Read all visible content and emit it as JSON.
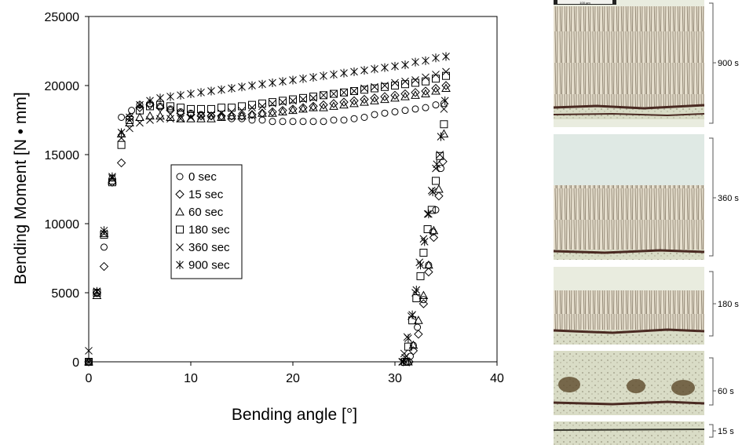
{
  "chart_data": {
    "type": "scatter",
    "xlabel": "Bending angle [°]",
    "ylabel": "Bending Moment  [N • mm]",
    "xlim": [
      0,
      40
    ],
    "ylim": [
      0,
      25000
    ],
    "xticks": [
      0,
      10,
      20,
      30,
      40
    ],
    "yticks": [
      0,
      5000,
      10000,
      15000,
      20000,
      25000
    ],
    "grid": false,
    "legend_position": "center-left",
    "series": [
      {
        "name": "0 sec",
        "marker": "circle",
        "points": [
          [
            0,
            0
          ],
          [
            0.8,
            5000
          ],
          [
            1.5,
            8300
          ],
          [
            2.3,
            13300
          ],
          [
            3.2,
            17700
          ],
          [
            4.2,
            18200
          ],
          [
            5,
            18600
          ],
          [
            6,
            18700
          ],
          [
            7,
            18500
          ],
          [
            8,
            18300
          ],
          [
            9,
            18100
          ],
          [
            10,
            18000
          ],
          [
            11,
            17900
          ],
          [
            12,
            17800
          ],
          [
            13,
            17700
          ],
          [
            14,
            17600
          ],
          [
            15,
            17600
          ],
          [
            16,
            17500
          ],
          [
            17,
            17500
          ],
          [
            18,
            17400
          ],
          [
            19,
            17400
          ],
          [
            20,
            17400
          ],
          [
            21,
            17400
          ],
          [
            22,
            17400
          ],
          [
            23,
            17400
          ],
          [
            24,
            17500
          ],
          [
            25,
            17500
          ],
          [
            26,
            17600
          ],
          [
            27,
            17700
          ],
          [
            28,
            17900
          ],
          [
            29,
            18000
          ],
          [
            30,
            18100
          ],
          [
            31,
            18200
          ],
          [
            32,
            18300
          ],
          [
            33,
            18400
          ],
          [
            34,
            18600
          ],
          [
            34.8,
            18700
          ],
          [
            34.5,
            14000
          ],
          [
            34,
            11000
          ],
          [
            33.7,
            9400
          ],
          [
            33.3,
            7000
          ],
          [
            32.8,
            4500
          ],
          [
            32.2,
            2500
          ],
          [
            31.8,
            1200
          ],
          [
            31.5,
            400
          ],
          [
            31.2,
            0
          ]
        ]
      },
      {
        "name": "15 sec",
        "marker": "diamond",
        "points": [
          [
            0,
            0
          ],
          [
            0.8,
            5000
          ],
          [
            1.5,
            6900
          ],
          [
            2.3,
            13000
          ],
          [
            3.2,
            14400
          ],
          [
            4,
            17700
          ],
          [
            5,
            18400
          ],
          [
            6,
            18600
          ],
          [
            7,
            18400
          ],
          [
            8,
            18200
          ],
          [
            9,
            18000
          ],
          [
            10,
            17900
          ],
          [
            11,
            17800
          ],
          [
            12,
            17800
          ],
          [
            13,
            17800
          ],
          [
            14,
            17800
          ],
          [
            15,
            17800
          ],
          [
            16,
            17900
          ],
          [
            17,
            18000
          ],
          [
            18,
            18100
          ],
          [
            19,
            18200
          ],
          [
            20,
            18300
          ],
          [
            21,
            18400
          ],
          [
            22,
            18500
          ],
          [
            23,
            18600
          ],
          [
            24,
            18700
          ],
          [
            25,
            18800
          ],
          [
            26,
            18900
          ],
          [
            27,
            19000
          ],
          [
            28,
            19100
          ],
          [
            29,
            19200
          ],
          [
            30,
            19300
          ],
          [
            31,
            19400
          ],
          [
            32,
            19500
          ],
          [
            33,
            19600
          ],
          [
            34,
            19800
          ],
          [
            35,
            20000
          ],
          [
            34.7,
            14500
          ],
          [
            34.3,
            12000
          ],
          [
            33.8,
            9000
          ],
          [
            33.3,
            6500
          ],
          [
            32.8,
            4200
          ],
          [
            32.3,
            2000
          ],
          [
            31.8,
            800
          ],
          [
            31.4,
            0
          ]
        ]
      },
      {
        "name": "60 sec",
        "marker": "triangle",
        "points": [
          [
            0,
            0
          ],
          [
            0.8,
            4800
          ],
          [
            1.5,
            9300
          ],
          [
            2.3,
            13100
          ],
          [
            3.2,
            16500
          ],
          [
            4,
            17300
          ],
          [
            5,
            17700
          ],
          [
            6,
            17800
          ],
          [
            7,
            17800
          ],
          [
            8,
            17700
          ],
          [
            9,
            17600
          ],
          [
            10,
            17600
          ],
          [
            11,
            17600
          ],
          [
            12,
            17600
          ],
          [
            13,
            17700
          ],
          [
            14,
            17800
          ],
          [
            15,
            17800
          ],
          [
            16,
            17900
          ],
          [
            17,
            18000
          ],
          [
            18,
            18000
          ],
          [
            19,
            18100
          ],
          [
            20,
            18200
          ],
          [
            21,
            18300
          ],
          [
            22,
            18400
          ],
          [
            23,
            18400
          ],
          [
            24,
            18500
          ],
          [
            25,
            18600
          ],
          [
            26,
            18700
          ],
          [
            27,
            18800
          ],
          [
            28,
            18900
          ],
          [
            29,
            19000
          ],
          [
            30,
            19100
          ],
          [
            31,
            19200
          ],
          [
            32,
            19300
          ],
          [
            33,
            19400
          ],
          [
            34,
            19600
          ],
          [
            35,
            19800
          ],
          [
            34.8,
            16500
          ],
          [
            34.3,
            12500
          ],
          [
            33.8,
            9500
          ],
          [
            33.3,
            7000
          ],
          [
            32.8,
            4800
          ],
          [
            32.3,
            3000
          ],
          [
            31.8,
            1200
          ],
          [
            31.3,
            0
          ]
        ]
      },
      {
        "name": "180 sec",
        "marker": "square",
        "points": [
          [
            0,
            0
          ],
          [
            0.8,
            5000
          ],
          [
            1.5,
            9200
          ],
          [
            2.3,
            13000
          ],
          [
            3.2,
            15700
          ],
          [
            4,
            17500
          ],
          [
            5,
            18200
          ],
          [
            6,
            18500
          ],
          [
            7,
            18600
          ],
          [
            8,
            18500
          ],
          [
            9,
            18400
          ],
          [
            10,
            18300
          ],
          [
            11,
            18300
          ],
          [
            12,
            18300
          ],
          [
            13,
            18400
          ],
          [
            14,
            18400
          ],
          [
            15,
            18500
          ],
          [
            16,
            18600
          ],
          [
            17,
            18700
          ],
          [
            18,
            18800
          ],
          [
            19,
            18900
          ],
          [
            20,
            19000
          ],
          [
            21,
            19100
          ],
          [
            22,
            19200
          ],
          [
            23,
            19300
          ],
          [
            24,
            19400
          ],
          [
            25,
            19500
          ],
          [
            26,
            19600
          ],
          [
            27,
            19700
          ],
          [
            28,
            19800
          ],
          [
            29,
            19900
          ],
          [
            30,
            20000
          ],
          [
            31,
            20100
          ],
          [
            32,
            20200
          ],
          [
            33,
            20300
          ],
          [
            34,
            20500
          ],
          [
            35,
            20700
          ],
          [
            34.8,
            17200
          ],
          [
            34.4,
            14900
          ],
          [
            34,
            13100
          ],
          [
            33.6,
            11000
          ],
          [
            33.2,
            9600
          ],
          [
            32.8,
            7900
          ],
          [
            32.5,
            6200
          ],
          [
            32.1,
            4600
          ],
          [
            31.7,
            3000
          ],
          [
            31.3,
            1100
          ],
          [
            31,
            0
          ]
        ]
      },
      {
        "name": "360 sec",
        "marker": "x",
        "points": [
          [
            0,
            800
          ],
          [
            0.8,
            5100
          ],
          [
            1.5,
            9300
          ],
          [
            2.3,
            13300
          ],
          [
            3.2,
            16200
          ],
          [
            4,
            16900
          ],
          [
            5,
            17300
          ],
          [
            6,
            17500
          ],
          [
            7,
            17600
          ],
          [
            8,
            17600
          ],
          [
            9,
            17600
          ],
          [
            10,
            17700
          ],
          [
            11,
            17800
          ],
          [
            12,
            17900
          ],
          [
            13,
            18000
          ],
          [
            14,
            18100
          ],
          [
            15,
            18200
          ],
          [
            16,
            18400
          ],
          [
            17,
            18500
          ],
          [
            18,
            18700
          ],
          [
            19,
            18800
          ],
          [
            20,
            18900
          ],
          [
            21,
            19000
          ],
          [
            22,
            19100
          ],
          [
            23,
            19300
          ],
          [
            24,
            19400
          ],
          [
            25,
            19500
          ],
          [
            26,
            19600
          ],
          [
            27,
            19800
          ],
          [
            28,
            19900
          ],
          [
            29,
            20000
          ],
          [
            30,
            20200
          ],
          [
            31,
            20300
          ],
          [
            32,
            20400
          ],
          [
            33,
            20600
          ],
          [
            34,
            20800
          ],
          [
            35,
            21000
          ],
          [
            34.8,
            18300
          ],
          [
            34.4,
            15000
          ],
          [
            34,
            14000
          ],
          [
            33.6,
            12400
          ],
          [
            33.2,
            10700
          ],
          [
            32.8,
            8900
          ],
          [
            32.4,
            7200
          ],
          [
            32,
            5000
          ],
          [
            31.6,
            3300
          ],
          [
            31.2,
            1800
          ],
          [
            30.9,
            600
          ],
          [
            30.7,
            0
          ]
        ]
      },
      {
        "name": "900 sec",
        "marker": "asterisk",
        "points": [
          [
            0,
            0
          ],
          [
            0.8,
            5100
          ],
          [
            1.5,
            9500
          ],
          [
            2.3,
            13400
          ],
          [
            3.2,
            16600
          ],
          [
            4,
            17700
          ],
          [
            5,
            18600
          ],
          [
            6,
            18900
          ],
          [
            7,
            19100
          ],
          [
            8,
            19200
          ],
          [
            9,
            19300
          ],
          [
            10,
            19400
          ],
          [
            11,
            19500
          ],
          [
            12,
            19600
          ],
          [
            13,
            19700
          ],
          [
            14,
            19800
          ],
          [
            15,
            19900
          ],
          [
            16,
            20000
          ],
          [
            17,
            20100
          ],
          [
            18,
            20200
          ],
          [
            19,
            20300
          ],
          [
            20,
            20400
          ],
          [
            21,
            20500
          ],
          [
            22,
            20600
          ],
          [
            23,
            20700
          ],
          [
            24,
            20800
          ],
          [
            25,
            20900
          ],
          [
            26,
            21000
          ],
          [
            27,
            21100
          ],
          [
            28,
            21200
          ],
          [
            29,
            21300
          ],
          [
            30,
            21400
          ],
          [
            31,
            21500
          ],
          [
            32,
            21700
          ],
          [
            33,
            21800
          ],
          [
            34,
            22000
          ],
          [
            35,
            22100
          ],
          [
            34.9,
            18900
          ],
          [
            34.5,
            16300
          ],
          [
            34.1,
            14300
          ],
          [
            33.7,
            12300
          ],
          [
            33.3,
            10700
          ],
          [
            32.9,
            8700
          ],
          [
            32.5,
            7000
          ],
          [
            32.1,
            5200
          ],
          [
            31.7,
            3400
          ],
          [
            31.3,
            1700
          ],
          [
            31,
            300
          ],
          [
            30.8,
            0
          ]
        ]
      }
    ]
  },
  "micrographs": {
    "scale_bar": "100 µm",
    "panels": [
      {
        "label": "900 s"
      },
      {
        "label": "360 s"
      },
      {
        "label": "180 s"
      },
      {
        "label": "60 s"
      },
      {
        "label": "15 s"
      }
    ]
  }
}
